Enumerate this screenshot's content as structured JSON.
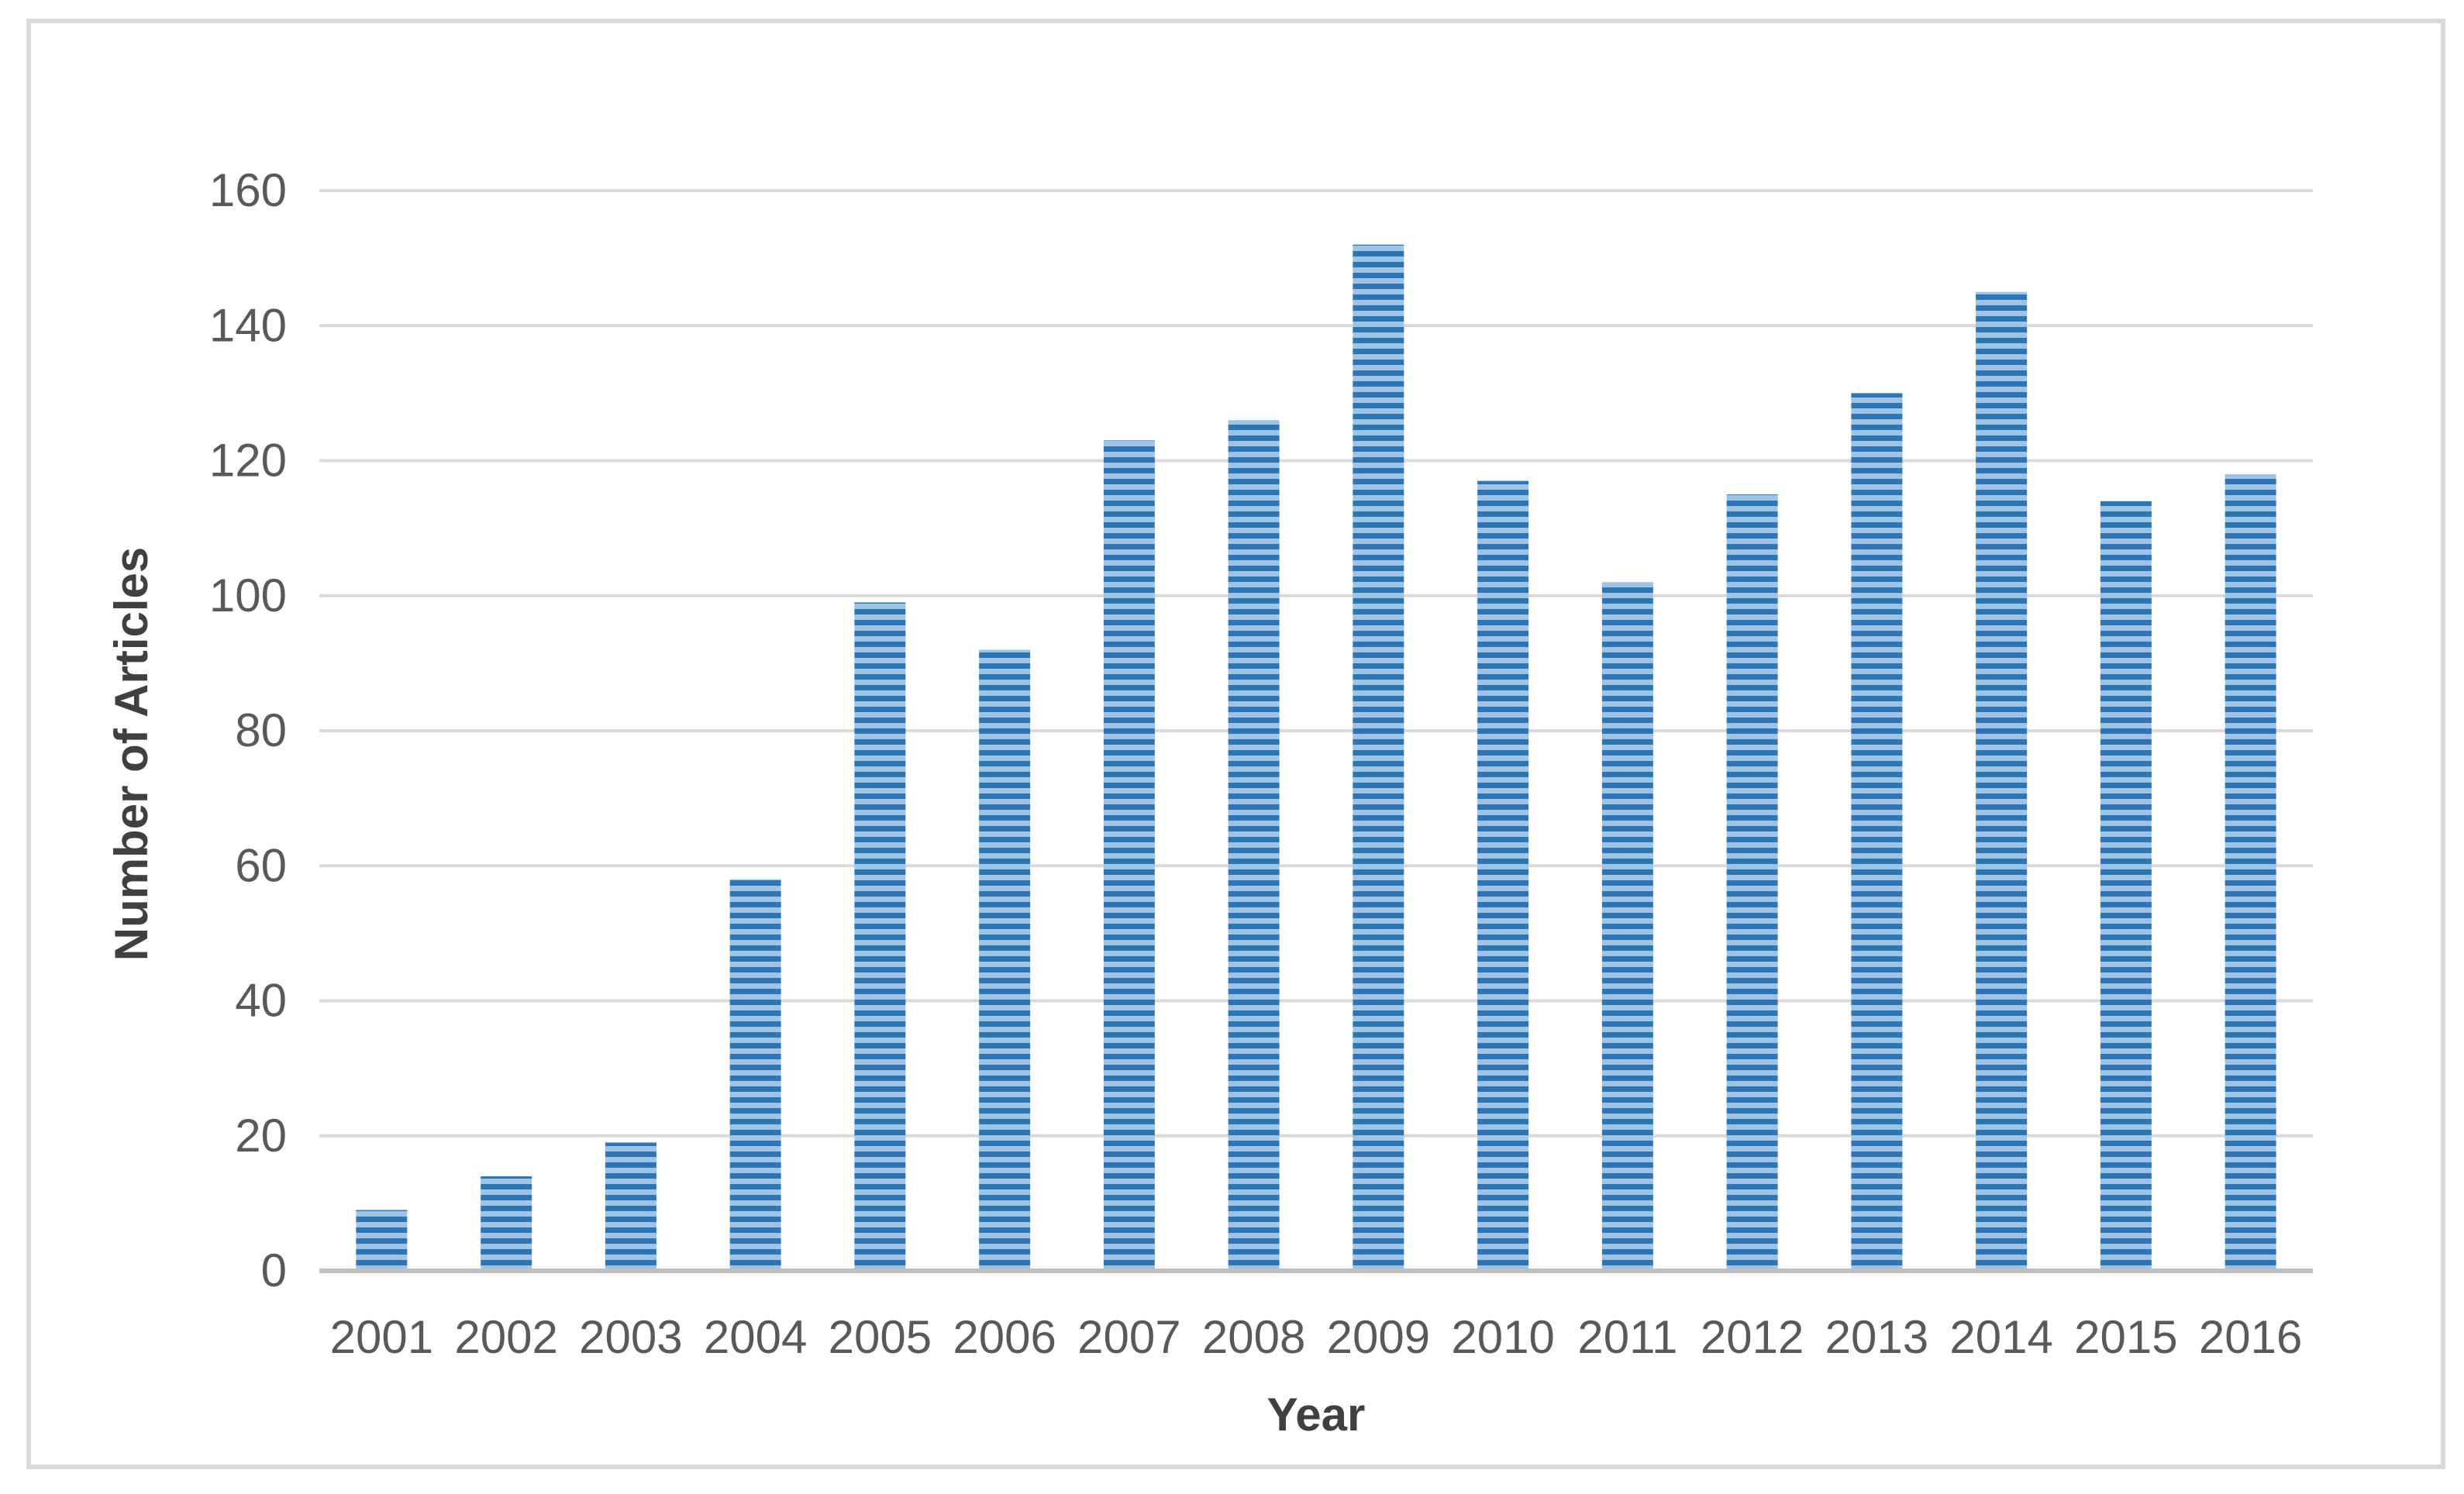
{
  "chart_data": {
    "type": "bar",
    "title": "",
    "xlabel": "Year",
    "ylabel": "Number of Articles",
    "categories": [
      "2001",
      "2002",
      "2003",
      "2004",
      "2005",
      "2006",
      "2007",
      "2008",
      "2009",
      "2010",
      "2011",
      "2012",
      "2013",
      "2014",
      "2015",
      "2016"
    ],
    "values": [
      9,
      14,
      19,
      58,
      99,
      92,
      123,
      126,
      152,
      117,
      102,
      115,
      130,
      145,
      114,
      118
    ],
    "ylim": [
      0,
      160
    ],
    "yticks": [
      "0",
      "20",
      "40",
      "60",
      "80",
      "100",
      "120",
      "140",
      "160"
    ],
    "grid": true,
    "legend": "none",
    "bar_color": "#2e75b6",
    "bar_stripe_color": "#9dc3e6",
    "bar_pattern": "horizontal-stripes"
  }
}
